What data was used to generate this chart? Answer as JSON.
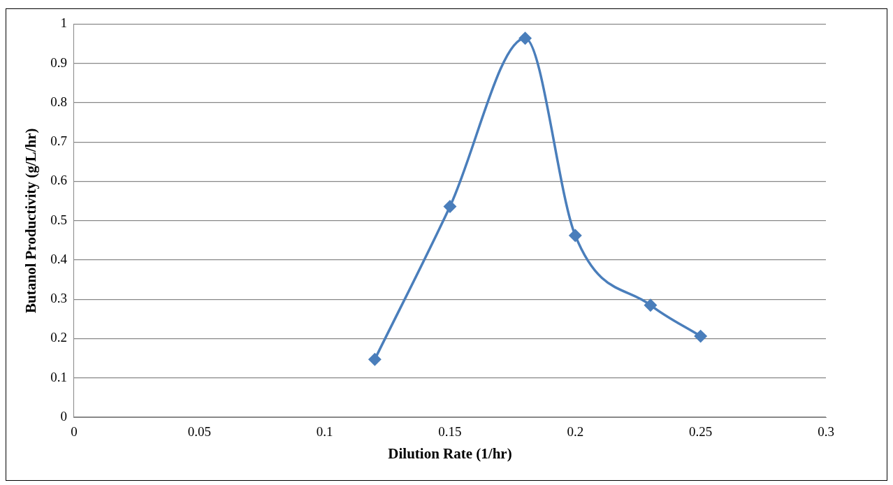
{
  "chart_data": {
    "type": "line",
    "xlabel": "Dilution Rate (1/hr)",
    "ylabel": "Butanol Productivity (g/L/hr)",
    "series": [
      {
        "color": "#4a7ebb",
        "x": [
          0.12,
          0.15,
          0.18,
          0.2,
          0.23,
          0.25
        ],
        "values": [
          0.147,
          0.536,
          0.964,
          0.462,
          0.285,
          0.206
        ]
      }
    ],
    "xlim": [
      0,
      0.3
    ],
    "xticks": [
      0,
      0.05,
      0.1,
      0.15,
      0.2,
      0.25,
      0.3
    ],
    "ylim": [
      0,
      1
    ],
    "yticks": [
      0,
      0.1,
      0.2,
      0.3,
      0.4,
      0.5,
      0.6,
      0.7,
      0.8,
      0.9,
      1
    ],
    "grid": "y",
    "legend": false,
    "marker": "diamond",
    "line_style": "solid"
  }
}
